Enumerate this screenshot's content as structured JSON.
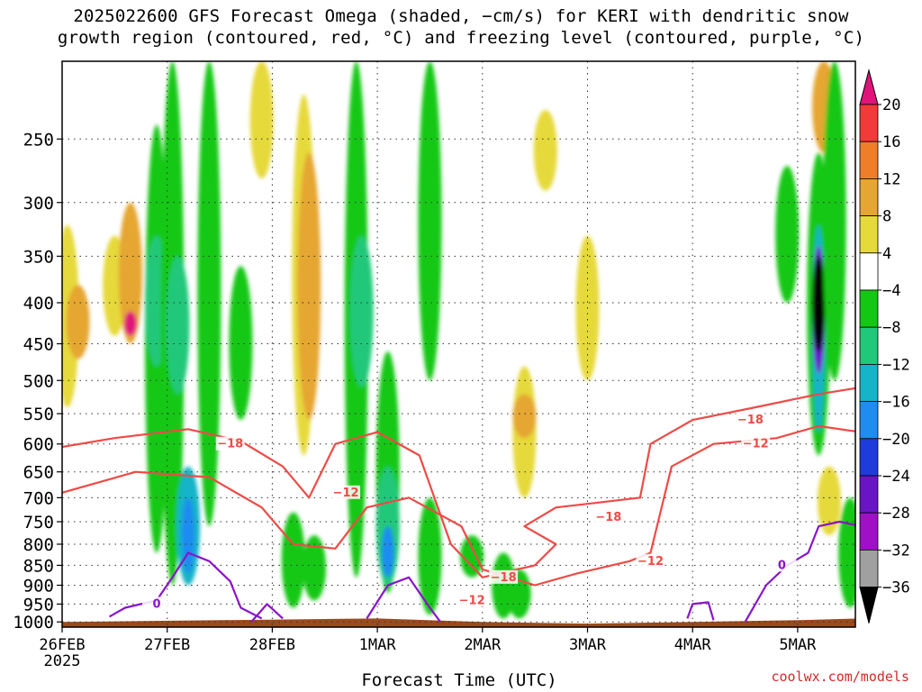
{
  "title_line1": "2025022600 GFS Forecast Omega (shaded, −cm/s) for KERI with dendritic snow",
  "title_line2": "growth region (contoured, red, °C) and freezing level (contoured, purple, °C)",
  "credit": "coolwx.com/models",
  "colors": {
    "terrain": "#9b4a1e",
    "contour_dgz": "#ef4a46",
    "contour_freezing": "#8a14c8",
    "grid": "#333333"
  },
  "chart_data": {
    "type": "heatmap",
    "xlabel": "Forecast Time (UTC)",
    "x_ticks": [
      {
        "label": "26FEB",
        "sub": "2025",
        "day": 0
      },
      {
        "label": "27FEB",
        "sub": "",
        "day": 1
      },
      {
        "label": "28FEB",
        "sub": "",
        "day": 2
      },
      {
        "label": "1MAR",
        "sub": "",
        "day": 3
      },
      {
        "label": "2MAR",
        "sub": "",
        "day": 4
      },
      {
        "label": "3MAR",
        "sub": "",
        "day": 5
      },
      {
        "label": "4MAR",
        "sub": "",
        "day": 6
      },
      {
        "label": "5MAR",
        "sub": "",
        "day": 7
      }
    ],
    "xlim_days": [
      0,
      7.6
    ],
    "ylabel": "",
    "y_ticks": [
      250,
      300,
      350,
      400,
      450,
      500,
      550,
      600,
      650,
      700,
      750,
      800,
      850,
      900,
      950,
      1000
    ],
    "ylim_hpa": [
      200,
      1015
    ],
    "y_scale": "log",
    "colorbar": {
      "labels": [
        "20",
        "16",
        "12",
        "8",
        "4",
        "−4",
        "−8",
        "−12",
        "−16",
        "−20",
        "−24",
        "−28",
        "−32",
        "−36"
      ],
      "segments": [
        {
          "from": 20,
          "to": 24,
          "color": "#e0137a"
        },
        {
          "from": 16,
          "to": 20,
          "color": "#f23a3a"
        },
        {
          "from": 12,
          "to": 16,
          "color": "#f07d28"
        },
        {
          "from": 8,
          "to": 12,
          "color": "#e5a632"
        },
        {
          "from": 4,
          "to": 8,
          "color": "#e6d93a"
        },
        {
          "from": -4,
          "to": 4,
          "color": "#ffffff"
        },
        {
          "from": -8,
          "to": -4,
          "color": "#12c812"
        },
        {
          "from": -12,
          "to": -8,
          "color": "#20c87a"
        },
        {
          "from": -16,
          "to": -12,
          "color": "#16b4c8"
        },
        {
          "from": -20,
          "to": -16,
          "color": "#1e8cf0"
        },
        {
          "from": -24,
          "to": -20,
          "color": "#1e3cdc"
        },
        {
          "from": -28,
          "to": -24,
          "color": "#6a14c8"
        },
        {
          "from": -32,
          "to": -28,
          "color": "#a010c8"
        },
        {
          "from": -36,
          "to": -32,
          "color": "#a0a0a0"
        },
        {
          "from": -40,
          "to": -36,
          "color": "#000000"
        }
      ]
    },
    "omega_regions": [
      {
        "day": 0.05,
        "p_top": 320,
        "p_bot": 540,
        "value": 6
      },
      {
        "day": 0.15,
        "p_top": 380,
        "p_bot": 470,
        "value": 10
      },
      {
        "day": 0.5,
        "p_top": 330,
        "p_bot": 440,
        "value": 6
      },
      {
        "day": 0.65,
        "p_top": 300,
        "p_bot": 450,
        "value": 8
      },
      {
        "day": 0.65,
        "p_top": 410,
        "p_bot": 440,
        "value": 20
      },
      {
        "day": 0.9,
        "p_top": 240,
        "p_bot": 820,
        "value": -6
      },
      {
        "day": 0.9,
        "p_top": 330,
        "p_bot": 480,
        "value": -10
      },
      {
        "day": 1.05,
        "p_top": 200,
        "p_bot": 900,
        "value": -6
      },
      {
        "day": 1.1,
        "p_top": 350,
        "p_bot": 520,
        "value": -10
      },
      {
        "day": 1.2,
        "p_top": 640,
        "p_bot": 900,
        "value": -14
      },
      {
        "day": 1.2,
        "p_top": 700,
        "p_bot": 870,
        "value": -18
      },
      {
        "day": 1.4,
        "p_top": 200,
        "p_bot": 760,
        "value": -6
      },
      {
        "day": 1.7,
        "p_top": 360,
        "p_bot": 560,
        "value": -6
      },
      {
        "day": 1.9,
        "p_top": 200,
        "p_bot": 280,
        "value": 6
      },
      {
        "day": 2.2,
        "p_top": 730,
        "p_bot": 960,
        "value": -6
      },
      {
        "day": 2.4,
        "p_top": 780,
        "p_bot": 940,
        "value": -6
      },
      {
        "day": 2.3,
        "p_top": 220,
        "p_bot": 620,
        "value": 6
      },
      {
        "day": 2.35,
        "p_top": 260,
        "p_bot": 560,
        "value": 10
      },
      {
        "day": 2.8,
        "p_top": 200,
        "p_bot": 880,
        "value": -6
      },
      {
        "day": 2.85,
        "p_top": 330,
        "p_bot": 510,
        "value": -10
      },
      {
        "day": 3.1,
        "p_top": 460,
        "p_bot": 920,
        "value": -6
      },
      {
        "day": 3.1,
        "p_top": 640,
        "p_bot": 900,
        "value": -12
      },
      {
        "day": 3.1,
        "p_top": 760,
        "p_bot": 880,
        "value": -18
      },
      {
        "day": 3.5,
        "p_top": 200,
        "p_bot": 500,
        "value": -6
      },
      {
        "day": 3.5,
        "p_top": 700,
        "p_bot": 980,
        "value": -6
      },
      {
        "day": 3.9,
        "p_top": 780,
        "p_bot": 880,
        "value": -6
      },
      {
        "day": 4.2,
        "p_top": 820,
        "p_bot": 990,
        "value": -6
      },
      {
        "day": 4.35,
        "p_top": 860,
        "p_bot": 990,
        "value": -6
      },
      {
        "day": 4.4,
        "p_top": 480,
        "p_bot": 700,
        "value": 6
      },
      {
        "day": 4.4,
        "p_top": 520,
        "p_bot": 590,
        "value": 10
      },
      {
        "day": 4.6,
        "p_top": 230,
        "p_bot": 290,
        "value": 6
      },
      {
        "day": 5.0,
        "p_top": 330,
        "p_bot": 500,
        "value": 6
      },
      {
        "day": 6.9,
        "p_top": 270,
        "p_bot": 400,
        "value": -6
      },
      {
        "day": 7.2,
        "p_top": 260,
        "p_bot": 620,
        "value": -6
      },
      {
        "day": 7.2,
        "p_top": 320,
        "p_bot": 580,
        "value": -16
      },
      {
        "day": 7.2,
        "p_top": 340,
        "p_bot": 490,
        "value": -26
      },
      {
        "day": 7.2,
        "p_top": 350,
        "p_bot": 460,
        "value": -38
      },
      {
        "day": 7.25,
        "p_top": 200,
        "p_bot": 260,
        "value": 10
      },
      {
        "day": 7.3,
        "p_top": 640,
        "p_bot": 780,
        "value": 6
      },
      {
        "day": 7.35,
        "p_top": 200,
        "p_bot": 500,
        "value": -6
      },
      {
        "day": 7.5,
        "p_top": 700,
        "p_bot": 960,
        "value": -6
      }
    ],
    "contours_red": [
      {
        "label": "−18",
        "label_at": [
          1.6,
          600
        ],
        "points": [
          [
            0,
            605
          ],
          [
            0.5,
            590
          ],
          [
            1.2,
            575
          ],
          [
            1.7,
            595
          ],
          [
            2.1,
            640
          ],
          [
            2.35,
            700
          ],
          [
            2.6,
            600
          ],
          [
            3.0,
            580
          ],
          [
            3.4,
            620
          ],
          [
            3.7,
            800
          ],
          [
            4.0,
            880
          ],
          [
            4.5,
            850
          ],
          [
            4.7,
            800
          ],
          [
            4.4,
            760
          ],
          [
            4.7,
            720
          ],
          [
            5.1,
            710
          ],
          [
            5.5,
            700
          ],
          [
            5.6,
            600
          ],
          [
            6.0,
            560
          ],
          [
            6.6,
            540
          ],
          [
            7.2,
            520
          ],
          [
            7.6,
            510
          ]
        ]
      },
      {
        "label": "−12",
        "label_at": [
          2.7,
          690
        ],
        "points": [
          [
            0,
            690
          ],
          [
            0.7,
            650
          ],
          [
            1.4,
            660
          ],
          [
            1.9,
            720
          ],
          [
            2.2,
            800
          ],
          [
            2.6,
            810
          ],
          [
            2.9,
            720
          ],
          [
            3.3,
            700
          ],
          [
            3.8,
            760
          ],
          [
            4.0,
            860
          ],
          [
            4.5,
            900
          ],
          [
            4.9,
            870
          ],
          [
            5.4,
            840
          ],
          [
            5.6,
            820
          ],
          [
            5.8,
            640
          ],
          [
            6.2,
            600
          ],
          [
            6.8,
            590
          ],
          [
            7.2,
            570
          ],
          [
            7.6,
            580
          ]
        ]
      },
      {
        "label": "−12",
        "label_at": [
          3.9,
          940
        ],
        "points": []
      },
      {
        "label": "−18",
        "label_at": [
          4.2,
          880
        ],
        "points": []
      },
      {
        "label": "−18",
        "label_at": [
          5.2,
          740
        ],
        "points": []
      },
      {
        "label": "−12",
        "label_at": [
          5.6,
          840
        ],
        "points": []
      },
      {
        "label": "−18",
        "label_at": [
          6.55,
          560
        ],
        "points": []
      },
      {
        "label": "−12",
        "label_at": [
          6.6,
          600
        ],
        "points": []
      }
    ],
    "contours_purple": [
      {
        "label": "0",
        "label_at": [
          0.9,
          950
        ],
        "points": [
          [
            0.45,
            985
          ],
          [
            0.6,
            960
          ],
          [
            0.9,
            940
          ],
          [
            1.05,
            880
          ],
          [
            1.2,
            820
          ],
          [
            1.4,
            840
          ],
          [
            1.6,
            890
          ],
          [
            1.7,
            960
          ],
          [
            1.9,
            990
          ]
        ]
      },
      {
        "label": "",
        "label_at": null,
        "points": [
          [
            1.8,
            1000
          ],
          [
            1.95,
            950
          ],
          [
            2.1,
            990
          ]
        ]
      },
      {
        "label": "",
        "label_at": null,
        "points": [
          [
            2.9,
            990
          ],
          [
            3.1,
            900
          ],
          [
            3.3,
            880
          ],
          [
            3.5,
            960
          ],
          [
            3.6,
            1000
          ]
        ]
      },
      {
        "label": "",
        "label_at": null,
        "points": [
          [
            5.95,
            990
          ],
          [
            6.0,
            950
          ],
          [
            6.15,
            945
          ],
          [
            6.2,
            995
          ]
        ]
      },
      {
        "label": "0",
        "label_at": [
          6.85,
          850
        ],
        "points": [
          [
            6.5,
            1000
          ],
          [
            6.7,
            900
          ],
          [
            6.9,
            850
          ],
          [
            7.1,
            820
          ],
          [
            7.2,
            760
          ],
          [
            7.4,
            750
          ],
          [
            7.6,
            760
          ]
        ]
      }
    ],
    "terrain_top_hpa": [
      [
        0,
        1000
      ],
      [
        1.5,
        995
      ],
      [
        3.0,
        990
      ],
      [
        4.0,
        1000
      ],
      [
        5.0,
        1005
      ],
      [
        6.0,
        1000
      ],
      [
        7.0,
        995
      ],
      [
        7.6,
        990
      ]
    ]
  }
}
